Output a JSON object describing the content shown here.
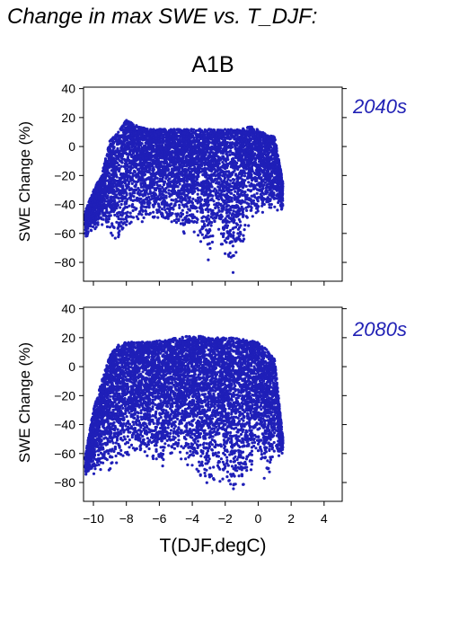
{
  "figure": {
    "title": "Change in max SWE vs. T_DJF:",
    "scenario": "A1B",
    "xlabel": "T(DJF,degC)"
  },
  "colors": {
    "points": "#1f1fb8",
    "period_label": "#2121b5"
  },
  "chart_data": [
    {
      "type": "scatter",
      "panel": "2040s",
      "title": "A1B",
      "ylabel": "SWE Change (%)",
      "xlabel": "",
      "xlim": [
        -10.6,
        5.1
      ],
      "ylim": [
        -93,
        41
      ],
      "yticks": [
        -80,
        -60,
        -40,
        -20,
        0,
        20,
        40
      ],
      "xticks": [
        -10,
        -8,
        -6,
        -4,
        -2,
        0,
        2,
        4
      ],
      "xtick_labels_visible": false,
      "grid": false,
      "approx_point_count": 6000,
      "envelope": [
        {
          "x": -10.5,
          "lo": -65,
          "hi": -45
        },
        {
          "x": -10.0,
          "lo": -58,
          "hi": -30
        },
        {
          "x": -9.5,
          "lo": -55,
          "hi": -20
        },
        {
          "x": -9.0,
          "lo": -60,
          "hi": 5
        },
        {
          "x": -8.5,
          "lo": -72,
          "hi": 10
        },
        {
          "x": -8.0,
          "lo": -60,
          "hi": 19
        },
        {
          "x": -7.5,
          "lo": -55,
          "hi": 15
        },
        {
          "x": -7.0,
          "lo": -55,
          "hi": 13
        },
        {
          "x": -6.5,
          "lo": -50,
          "hi": 12
        },
        {
          "x": -6.0,
          "lo": -50,
          "hi": 12
        },
        {
          "x": -5.5,
          "lo": -58,
          "hi": 12
        },
        {
          "x": -5.0,
          "lo": -60,
          "hi": 12
        },
        {
          "x": -4.5,
          "lo": -62,
          "hi": 12
        },
        {
          "x": -4.0,
          "lo": -58,
          "hi": 12
        },
        {
          "x": -3.5,
          "lo": -70,
          "hi": 12
        },
        {
          "x": -3.0,
          "lo": -82,
          "hi": 12
        },
        {
          "x": -2.5,
          "lo": -60,
          "hi": 12
        },
        {
          "x": -2.0,
          "lo": -80,
          "hi": 12
        },
        {
          "x": -1.5,
          "lo": -90,
          "hi": 12
        },
        {
          "x": -1.0,
          "lo": -72,
          "hi": 12
        },
        {
          "x": -0.5,
          "lo": -55,
          "hi": 14
        },
        {
          "x": 0.0,
          "lo": -50,
          "hi": 12
        },
        {
          "x": 0.5,
          "lo": -45,
          "hi": 8
        },
        {
          "x": 1.0,
          "lo": -45,
          "hi": 8
        },
        {
          "x": 1.5,
          "lo": -45,
          "hi": -25
        }
      ]
    },
    {
      "type": "scatter",
      "panel": "2080s",
      "title": "",
      "ylabel": "SWE Change (%)",
      "xlabel": "T(DJF,degC)",
      "xlim": [
        -10.6,
        5.1
      ],
      "ylim": [
        -93,
        41
      ],
      "yticks": [
        -80,
        -60,
        -40,
        -20,
        0,
        20,
        40
      ],
      "xticks": [
        -10,
        -8,
        -6,
        -4,
        -2,
        0,
        2,
        4
      ],
      "xtick_labels": [
        "−10",
        "−8",
        "−6",
        "−4",
        "−2",
        "0",
        "2",
        "4"
      ],
      "grid": false,
      "approx_point_count": 7000,
      "envelope": [
        {
          "x": -10.5,
          "lo": -75,
          "hi": -62
        },
        {
          "x": -10.0,
          "lo": -75,
          "hi": -30
        },
        {
          "x": -9.5,
          "lo": -72,
          "hi": -10
        },
        {
          "x": -9.0,
          "lo": -75,
          "hi": 8
        },
        {
          "x": -8.5,
          "lo": -70,
          "hi": 15
        },
        {
          "x": -8.0,
          "lo": -65,
          "hi": 17
        },
        {
          "x": -7.5,
          "lo": -62,
          "hi": 17
        },
        {
          "x": -7.0,
          "lo": -65,
          "hi": 17
        },
        {
          "x": -6.5,
          "lo": -68,
          "hi": 17
        },
        {
          "x": -6.0,
          "lo": -72,
          "hi": 18
        },
        {
          "x": -5.5,
          "lo": -70,
          "hi": 18
        },
        {
          "x": -5.0,
          "lo": -62,
          "hi": 20
        },
        {
          "x": -4.5,
          "lo": -68,
          "hi": 21
        },
        {
          "x": -4.0,
          "lo": -75,
          "hi": 21
        },
        {
          "x": -3.5,
          "lo": -80,
          "hi": 21
        },
        {
          "x": -3.0,
          "lo": -88,
          "hi": 20
        },
        {
          "x": -2.5,
          "lo": -80,
          "hi": 20
        },
        {
          "x": -2.0,
          "lo": -80,
          "hi": 20
        },
        {
          "x": -1.5,
          "lo": -90,
          "hi": 20
        },
        {
          "x": -1.0,
          "lo": -85,
          "hi": 19
        },
        {
          "x": -0.5,
          "lo": -75,
          "hi": 18
        },
        {
          "x": 0.0,
          "lo": -70,
          "hi": 17
        },
        {
          "x": 0.5,
          "lo": -80,
          "hi": 12
        },
        {
          "x": 1.0,
          "lo": -65,
          "hi": 5
        },
        {
          "x": 1.5,
          "lo": -60,
          "hi": -50
        }
      ]
    }
  ]
}
